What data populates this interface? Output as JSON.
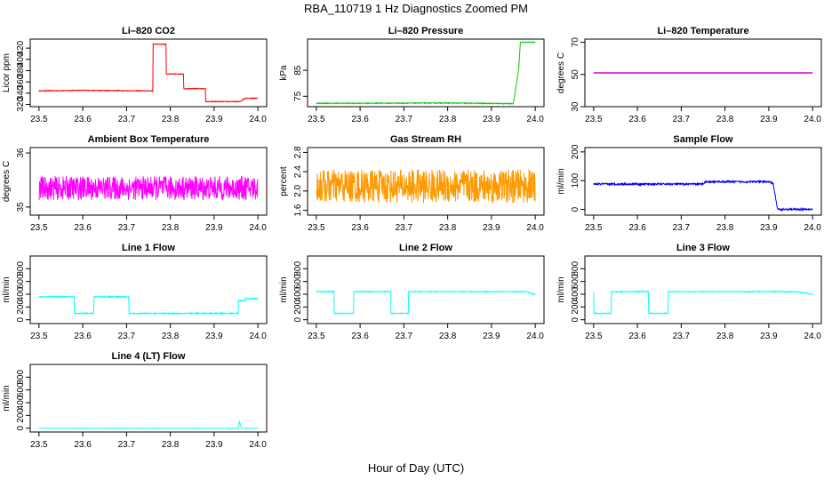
{
  "title": "RBA_110719  1 Hz Diagnostics Zoomed PM",
  "xlabel": "Hour of Day (UTC)",
  "chart_data": [
    {
      "type": "line",
      "title": "Li–820 CO2",
      "ylabel": "Licor ppm",
      "color": "#ff0000",
      "xlim": [
        23.48,
        24.02
      ],
      "xticks": [
        "23.5",
        "23.6",
        "23.7",
        "23.8",
        "23.9",
        "24.0"
      ],
      "ylim": [
        316,
        436
      ],
      "yticks": [
        320,
        340,
        360,
        380,
        400,
        420
      ],
      "noise": 0.6,
      "series": [
        {
          "x": [
            23.5,
            23.6,
            23.76,
            23.76,
            23.79,
            23.79,
            23.83,
            23.83,
            23.88,
            23.88,
            23.96,
            23.97,
            24.0
          ],
          "y": [
            344,
            345,
            344,
            427,
            427,
            374,
            374,
            348,
            348,
            325,
            325,
            331,
            331
          ]
        }
      ]
    },
    {
      "type": "line",
      "title": "Li–820 Pressure",
      "ylabel": "kPa",
      "color": "#00cc00",
      "xlim": [
        23.48,
        24.02
      ],
      "xticks": [
        "23.5",
        "23.6",
        "23.7",
        "23.8",
        "23.9",
        "24.0"
      ],
      "ylim": [
        71,
        97
      ],
      "yticks": [
        75,
        85
      ],
      "noise": 0.15,
      "series": [
        {
          "x": [
            23.5,
            23.8,
            23.93,
            23.95,
            23.962,
            23.966,
            24.0
          ],
          "y": [
            72.3,
            72.4,
            72.2,
            72.2,
            85,
            95.8,
            95.8
          ]
        }
      ]
    },
    {
      "type": "line",
      "title": "Li–820 Temperature",
      "ylabel": "degrees C",
      "color": "#cc00cc",
      "xlim": [
        23.48,
        24.02
      ],
      "xticks": [
        "23.5",
        "23.6",
        "23.7",
        "23.8",
        "23.9",
        "24.0"
      ],
      "ylim": [
        30,
        72
      ],
      "yticks": [
        30,
        50,
        70
      ],
      "noise": 0,
      "series": [
        {
          "x": [
            23.5,
            24.0
          ],
          "y": [
            51,
            51
          ]
        }
      ]
    },
    {
      "type": "line",
      "title": "Ambient Box Temperature",
      "ylabel": "degrees C",
      "color": "#ff00ff",
      "xlim": [
        23.48,
        24.02
      ],
      "xticks": [
        "23.5",
        "23.6",
        "23.7",
        "23.8",
        "23.9",
        "24.0"
      ],
      "ylim": [
        34.85,
        36.1
      ],
      "yticks": [
        35.0,
        36.0
      ],
      "noise": 0.22,
      "series": [
        {
          "x": [
            23.5,
            24.0
          ],
          "y": [
            35.35,
            35.35
          ]
        }
      ]
    },
    {
      "type": "line",
      "title": "Gas Stream RH",
      "ylabel": "percent",
      "color": "#ff9900",
      "xlim": [
        23.48,
        24.02
      ],
      "xticks": [
        "23.5",
        "23.6",
        "23.7",
        "23.8",
        "23.9",
        "24.0"
      ],
      "ylim": [
        1.5,
        2.9
      ],
      "yticks": [
        1.6,
        2.0,
        2.4,
        2.8
      ],
      "noise": 0.35,
      "series": [
        {
          "x": [
            23.5,
            24.0
          ],
          "y": [
            2.1,
            2.1
          ]
        }
      ]
    },
    {
      "type": "line",
      "title": "Sample Flow",
      "ylabel": "ml/min",
      "color": "#0000ff",
      "xlim": [
        23.48,
        24.02
      ],
      "xticks": [
        "23.5",
        "23.6",
        "23.7",
        "23.8",
        "23.9",
        "24.0"
      ],
      "ylim": [
        -20,
        215
      ],
      "yticks": [
        0,
        100,
        200
      ],
      "noise": 3,
      "series": [
        {
          "x": [
            23.5,
            23.75,
            23.755,
            23.9,
            23.91,
            23.92,
            24.0
          ],
          "y": [
            88,
            88,
            96,
            96,
            90,
            0,
            0
          ]
        }
      ]
    },
    {
      "type": "line",
      "title": "Line 1 Flow",
      "ylabel": "ml/min",
      "color": "#00ffff",
      "xlim": [
        23.48,
        24.02
      ],
      "xticks": [
        "23.5",
        "23.6",
        "23.7",
        "23.8",
        "23.9",
        "24.0"
      ],
      "ylim": [
        -60,
        1000
      ],
      "yticks": [
        0,
        200,
        400,
        600,
        800
      ],
      "noise": 8,
      "series": [
        {
          "x": [
            23.5,
            23.58,
            23.58,
            23.625,
            23.625,
            23.705,
            23.705,
            23.955,
            23.955,
            23.97,
            23.97,
            24.0
          ],
          "y": [
            360,
            360,
            100,
            100,
            360,
            360,
            100,
            100,
            300,
            300,
            330,
            330
          ]
        }
      ]
    },
    {
      "type": "line",
      "title": "Line 2 Flow",
      "ylabel": "ml/min",
      "color": "#00ffff",
      "xlim": [
        23.48,
        24.02
      ],
      "xticks": [
        "23.5",
        "23.6",
        "23.7",
        "23.8",
        "23.9",
        "24.0"
      ],
      "ylim": [
        -60,
        1000
      ],
      "yticks": [
        0,
        200,
        400,
        600,
        800
      ],
      "noise": 6,
      "series": [
        {
          "x": [
            23.5,
            23.54,
            23.54,
            23.585,
            23.585,
            23.67,
            23.67,
            23.71,
            23.71,
            23.98,
            24.0
          ],
          "y": [
            440,
            440,
            100,
            100,
            440,
            440,
            100,
            100,
            440,
            440,
            390
          ]
        }
      ]
    },
    {
      "type": "line",
      "title": "Line 3 Flow",
      "ylabel": "ml/min",
      "color": "#00ffff",
      "xlim": [
        23.48,
        24.02
      ],
      "xticks": [
        "23.5",
        "23.6",
        "23.7",
        "23.8",
        "23.9",
        "24.0"
      ],
      "ylim": [
        -60,
        1000
      ],
      "yticks": [
        0,
        200,
        400,
        600,
        800
      ],
      "noise": 6,
      "series": [
        {
          "x": [
            23.5,
            23.5,
            23.54,
            23.54,
            23.625,
            23.625,
            23.67,
            23.67,
            23.96,
            24.0
          ],
          "y": [
            440,
            100,
            100,
            440,
            440,
            100,
            100,
            440,
            440,
            400
          ]
        }
      ]
    },
    {
      "type": "line",
      "title": "Line 4 (LT) Flow",
      "ylabel": "ml/min",
      "color": "#00ffff",
      "xlim": [
        23.48,
        24.02
      ],
      "xticks": [
        "23.5",
        "23.6",
        "23.7",
        "23.8",
        "23.9",
        "24.0"
      ],
      "ylim": [
        -60,
        1000
      ],
      "yticks": [
        0,
        200,
        400,
        600,
        800
      ],
      "noise": 2,
      "series": [
        {
          "x": [
            23.5,
            23.955,
            23.958,
            23.962,
            23.97,
            24.0
          ],
          "y": [
            0,
            0,
            100,
            10,
            0,
            0
          ]
        }
      ]
    }
  ]
}
